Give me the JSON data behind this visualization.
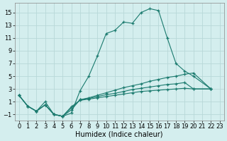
{
  "xlabel": "Humidex (Indice chaleur)",
  "background_color": "#d4eeee",
  "grid_color": "#b8d8d8",
  "line_color": "#1a7a6e",
  "xlim": [
    -0.5,
    23.5
  ],
  "ylim": [
    -2.0,
    16.5
  ],
  "xticks": [
    0,
    1,
    2,
    3,
    4,
    5,
    6,
    7,
    8,
    9,
    10,
    11,
    12,
    13,
    14,
    15,
    16,
    17,
    18,
    19,
    20,
    21,
    22,
    23
  ],
  "yticks": [
    -1,
    1,
    3,
    5,
    7,
    9,
    11,
    13,
    15
  ],
  "fontsize_ticks": 6,
  "fontsize_label": 7,
  "series": {
    "s1_x": [
      0,
      1,
      2,
      3,
      4,
      5,
      6,
      7,
      8,
      9,
      10,
      11,
      12,
      13,
      14,
      15,
      16,
      17,
      18,
      19,
      20,
      22
    ],
    "s1_y": [
      2.0,
      0.3,
      -0.5,
      1.0,
      -1.0,
      -1.3,
      -0.8,
      2.7,
      5.0,
      8.2,
      11.7,
      12.2,
      13.5,
      13.3,
      15.0,
      15.6,
      15.3,
      11.0,
      7.0,
      5.8,
      5.0,
      3.0
    ],
    "s2_x": [
      0,
      1,
      2,
      3,
      4,
      5,
      6,
      7,
      8,
      9,
      10,
      11,
      12,
      13,
      14,
      15,
      16,
      17,
      18,
      19,
      20,
      22
    ],
    "s2_y": [
      2.0,
      0.3,
      -0.5,
      0.5,
      -1.0,
      -1.3,
      -0.3,
      1.3,
      1.6,
      2.0,
      2.4,
      2.8,
      3.2,
      3.5,
      3.8,
      4.2,
      4.5,
      4.8,
      5.0,
      5.3,
      5.5,
      3.0
    ],
    "s3_x": [
      0,
      1,
      2,
      3,
      4,
      5,
      6,
      7,
      8,
      9,
      10,
      11,
      12,
      13,
      14,
      15,
      16,
      17,
      18,
      19,
      20,
      22
    ],
    "s3_y": [
      2.0,
      0.3,
      -0.5,
      0.5,
      -1.0,
      -1.3,
      0.0,
      1.3,
      1.5,
      1.8,
      2.1,
      2.3,
      2.6,
      2.9,
      3.1,
      3.3,
      3.5,
      3.7,
      3.8,
      4.0,
      3.0,
      3.0
    ],
    "s4_x": [
      0,
      1,
      2,
      3,
      4,
      5,
      6,
      7,
      8,
      9,
      10,
      11,
      12,
      13,
      14,
      15,
      16,
      17,
      18,
      19,
      20,
      22
    ],
    "s4_y": [
      2.0,
      0.3,
      -0.5,
      0.5,
      -1.0,
      -1.3,
      0.2,
      1.2,
      1.4,
      1.6,
      1.8,
      2.0,
      2.2,
      2.4,
      2.6,
      2.7,
      2.8,
      2.9,
      3.0,
      3.1,
      3.0,
      3.0
    ]
  }
}
